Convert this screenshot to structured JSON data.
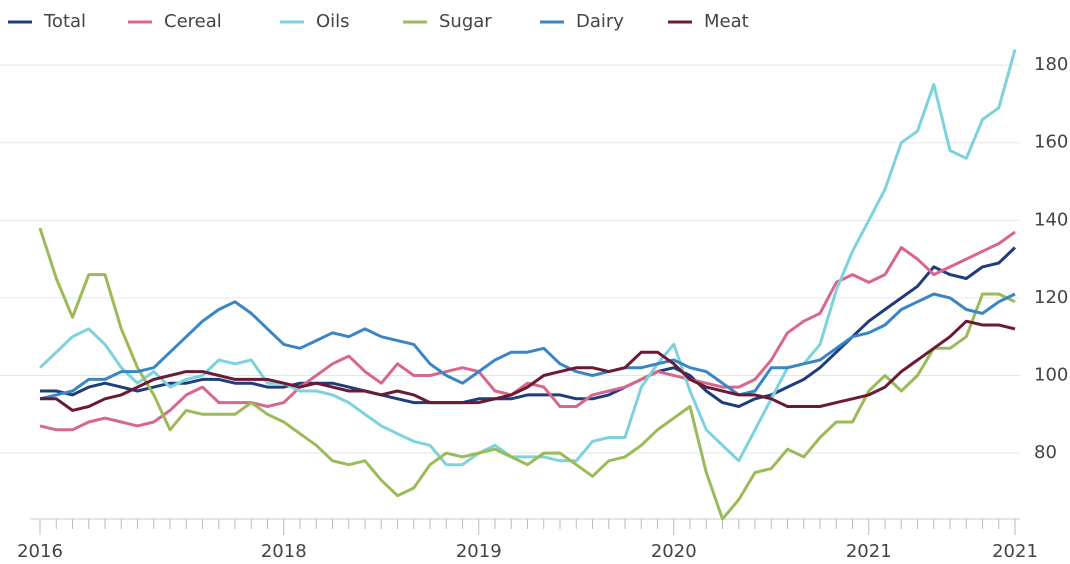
{
  "chart_data": {
    "type": "line",
    "categories": [
      "2016",
      null,
      null,
      null,
      null,
      null,
      null,
      null,
      null,
      null,
      null,
      null,
      null,
      null,
      null,
      "2018",
      null,
      null,
      null,
      null,
      null,
      null,
      null,
      null,
      null,
      null,
      null,
      "2019",
      null,
      null,
      null,
      null,
      null,
      null,
      null,
      null,
      null,
      null,
      null,
      "2020",
      null,
      null,
      null,
      null,
      null,
      null,
      null,
      null,
      null,
      null,
      null,
      "2021",
      null,
      null,
      null,
      null,
      null,
      null,
      null,
      null,
      "2021"
    ],
    "series": [
      {
        "name": "Total",
        "color": "#1f3d7a",
        "values": [
          96,
          96,
          95,
          97,
          98,
          97,
          96,
          97,
          98,
          98,
          99,
          99,
          98,
          98,
          97,
          97,
          98,
          98,
          98,
          97,
          96,
          95,
          94,
          93,
          93,
          93,
          93,
          94,
          94,
          94,
          95,
          95,
          95,
          94,
          94,
          95,
          97,
          99,
          101,
          102,
          100,
          96,
          93,
          92,
          94,
          95,
          97,
          99,
          102,
          106,
          110,
          114,
          117,
          120,
          123,
          128,
          126,
          125,
          128,
          129,
          133
        ]
      },
      {
        "name": "Cereal",
        "color": "#d9668f",
        "values": [
          87,
          86,
          86,
          88,
          89,
          88,
          87,
          88,
          91,
          95,
          97,
          93,
          93,
          93,
          92,
          93,
          97,
          100,
          103,
          105,
          101,
          98,
          103,
          100,
          100,
          101,
          102,
          101,
          96,
          95,
          98,
          97,
          92,
          92,
          95,
          96,
          97,
          99,
          101,
          100,
          99,
          98,
          97,
          97,
          99,
          104,
          111,
          114,
          116,
          124,
          126,
          124,
          126,
          133,
          130,
          126,
          128,
          130,
          132,
          134,
          137
        ]
      },
      {
        "name": "Oils",
        "color": "#7dd3dc",
        "values": [
          102,
          106,
          110,
          112,
          108,
          102,
          98,
          101,
          97,
          99,
          100,
          104,
          103,
          104,
          98,
          98,
          96,
          96,
          95,
          93,
          90,
          87,
          85,
          83,
          82,
          77,
          77,
          80,
          82,
          79,
          79,
          79,
          78,
          78,
          83,
          84,
          84,
          97,
          103,
          108,
          96,
          86,
          82,
          78,
          86,
          94,
          102,
          103,
          108,
          122,
          132,
          140,
          148,
          160,
          163,
          175,
          158,
          156,
          166,
          169,
          184
        ]
      },
      {
        "name": "Sugar",
        "color": "#9bbb59",
        "values": [
          138,
          125,
          115,
          126,
          126,
          112,
          102,
          95,
          86,
          91,
          90,
          90,
          90,
          93,
          90,
          88,
          85,
          82,
          78,
          77,
          78,
          73,
          69,
          71,
          77,
          80,
          79,
          80,
          81,
          79,
          77,
          80,
          80,
          77,
          74,
          78,
          79,
          82,
          86,
          89,
          92,
          75,
          63,
          68,
          75,
          76,
          81,
          79,
          84,
          88,
          88,
          96,
          100,
          96,
          100,
          107,
          107,
          110,
          121,
          121,
          119
        ]
      },
      {
        "name": "Dairy",
        "color": "#3a85c4",
        "values": [
          94,
          95,
          96,
          99,
          99,
          101,
          101,
          102,
          106,
          110,
          114,
          117,
          119,
          116,
          112,
          108,
          107,
          109,
          111,
          110,
          112,
          110,
          109,
          108,
          103,
          100,
          98,
          101,
          104,
          106,
          106,
          107,
          103,
          101,
          100,
          101,
          102,
          102,
          103,
          104,
          102,
          101,
          98,
          95,
          96,
          102,
          102,
          103,
          104,
          107,
          110,
          111,
          113,
          117,
          119,
          121,
          120,
          117,
          116,
          119,
          121
        ]
      },
      {
        "name": "Meat",
        "color": "#6b1a35",
        "values": [
          94,
          94,
          91,
          92,
          94,
          95,
          97,
          99,
          100,
          101,
          101,
          100,
          99,
          99,
          99,
          98,
          97,
          98,
          97,
          96,
          96,
          95,
          96,
          95,
          93,
          93,
          93,
          93,
          94,
          95,
          97,
          100,
          101,
          102,
          102,
          101,
          102,
          106,
          106,
          103,
          99,
          97,
          96,
          95,
          95,
          94,
          92,
          92,
          92,
          93,
          94,
          95,
          97,
          101,
          104,
          107,
          110,
          114,
          113,
          113,
          112
        ]
      }
    ],
    "ylim": [
      63,
      187
    ],
    "yticks": [
      80,
      100,
      120,
      140,
      160,
      180
    ],
    "grid": true
  }
}
